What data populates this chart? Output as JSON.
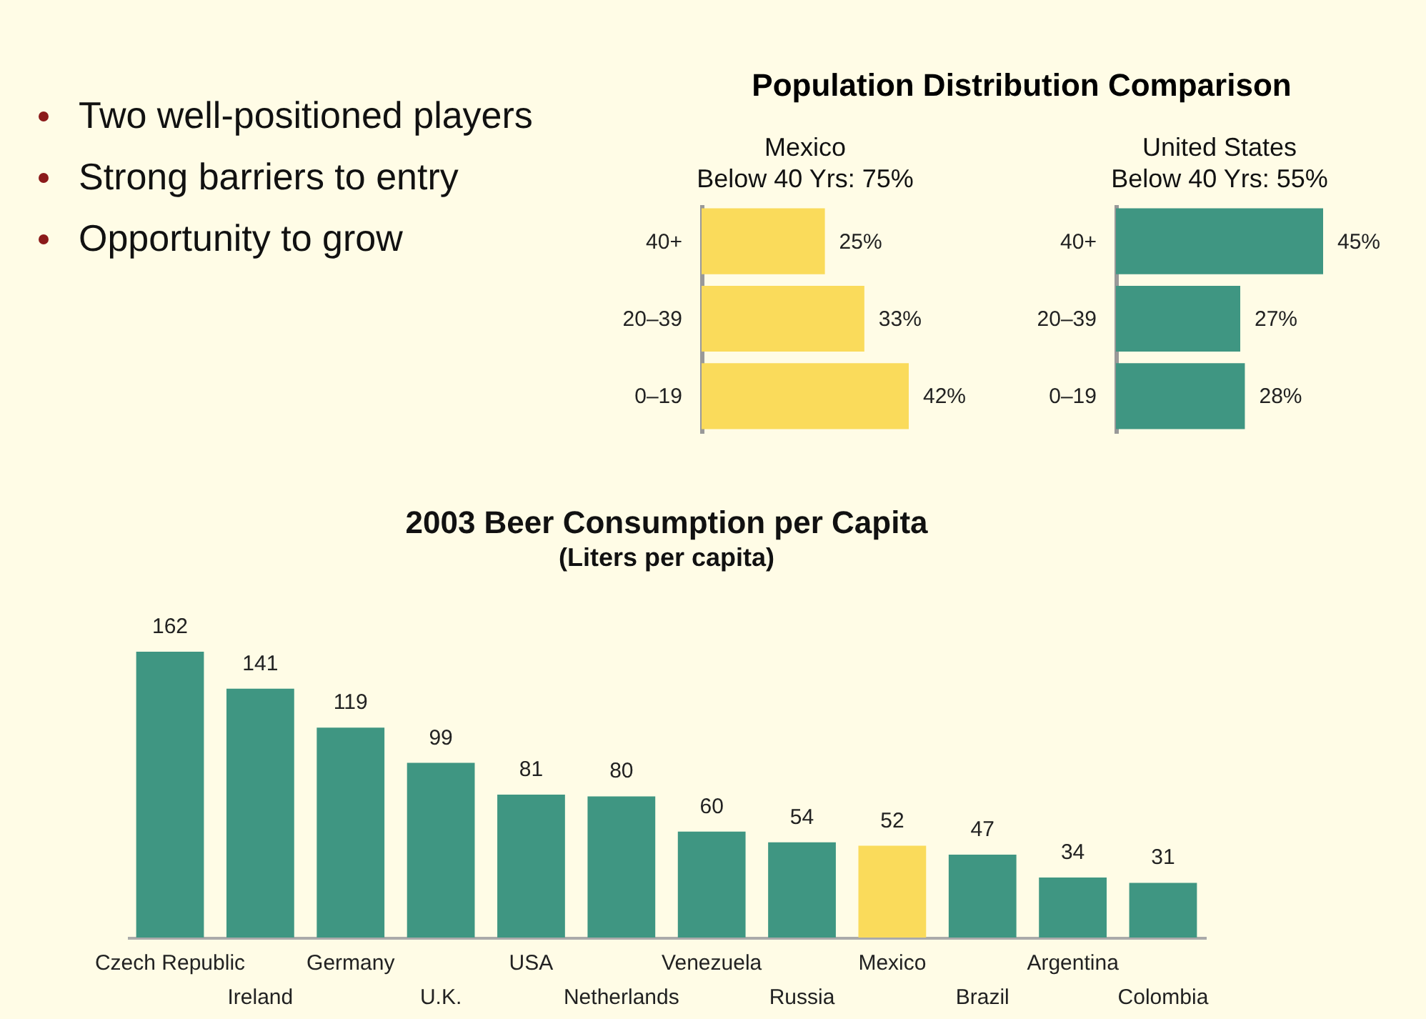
{
  "chart_data": [
    {
      "type": "other",
      "annotations": [
        "Two well-positioned players",
        "Strong barriers to entry",
        "Opportunity to grow"
      ]
    },
    {
      "type": "other",
      "title": "Population Distribution Comparison"
    },
    {
      "type": "bar",
      "orientation": "horizontal",
      "title": "Mexico",
      "subtitle": "Below 40 Yrs: 75%",
      "categories": [
        "40+",
        "20–39",
        "0–19"
      ],
      "values": [
        25,
        33,
        42
      ],
      "value_labels": [
        "25%",
        "33%",
        "42%"
      ],
      "color": "#fadb5b"
    },
    {
      "type": "bar",
      "orientation": "horizontal",
      "title": "United States",
      "subtitle": "Below 40 Yrs: 55%",
      "categories": [
        "40+",
        "20–39",
        "0–19"
      ],
      "values": [
        45,
        27,
        28
      ],
      "value_labels": [
        "45%",
        "27%",
        "28%"
      ],
      "color": "#3f9682"
    },
    {
      "type": "bar",
      "title": "2003 Beer Consumption per Capita",
      "subtitle": "(Liters per capita)",
      "categories": [
        "Czech Republic",
        "Ireland",
        "Germany",
        "U.K.",
        "USA",
        "Netherlands",
        "Venezuela",
        "Russia",
        "Mexico",
        "Brazil",
        "Argentina",
        "Colombia"
      ],
      "values": [
        162,
        141,
        119,
        99,
        81,
        80,
        60,
        54,
        52,
        47,
        34,
        31
      ],
      "colors": [
        "#3f9682",
        "#3f9682",
        "#3f9682",
        "#3f9682",
        "#3f9682",
        "#3f9682",
        "#3f9682",
        "#3f9682",
        "#fadb5b",
        "#3f9682",
        "#3f9682",
        "#3f9682"
      ],
      "data_labels": true
    }
  ]
}
